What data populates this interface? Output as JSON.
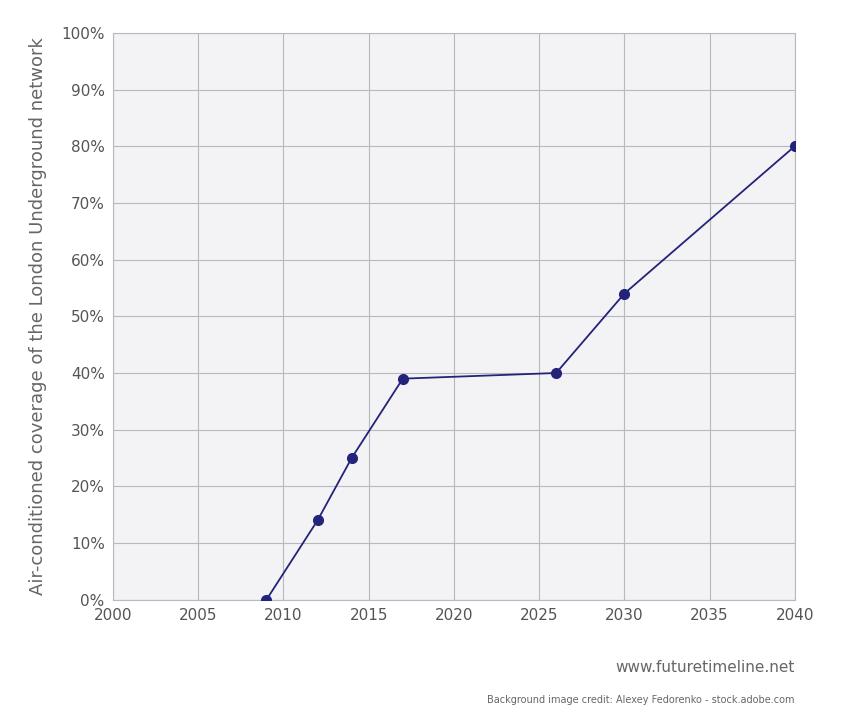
{
  "chart_data": {
    "type": "line",
    "y_label": "Air-conditioned coverage of the London Underground network",
    "annotations": [
      "www.futuretimeline.net",
      "Background image credit: Alexey Fedorenko - stock.adobe.com"
    ],
    "x": [
      2009,
      2012,
      2014,
      2017,
      2026,
      2030,
      2040
    ],
    "values": [
      0,
      14,
      25,
      39,
      40,
      54,
      80
    ],
    "color": "#23237a",
    "marker": "o",
    "line_style": "solid",
    "xlim": [
      2000,
      2040
    ],
    "xticks": [
      2000,
      2005,
      2010,
      2015,
      2020,
      2025,
      2030,
      2035,
      2040
    ],
    "ylim": [
      0,
      100
    ],
    "yticks": [
      {
        "value": 0,
        "label": "0%"
      },
      {
        "value": 10,
        "label": "10%"
      },
      {
        "value": 20,
        "label": "20%"
      },
      {
        "value": 30,
        "label": "30%"
      },
      {
        "value": 40,
        "label": "40%"
      },
      {
        "value": 50,
        "label": "50%"
      },
      {
        "value": 60,
        "label": "60%"
      },
      {
        "value": 70,
        "label": "70%"
      },
      {
        "value": 80,
        "label": "80%"
      },
      {
        "value": 90,
        "label": "90%"
      },
      {
        "value": 100,
        "label": "100%"
      }
    ],
    "grid": true
  }
}
